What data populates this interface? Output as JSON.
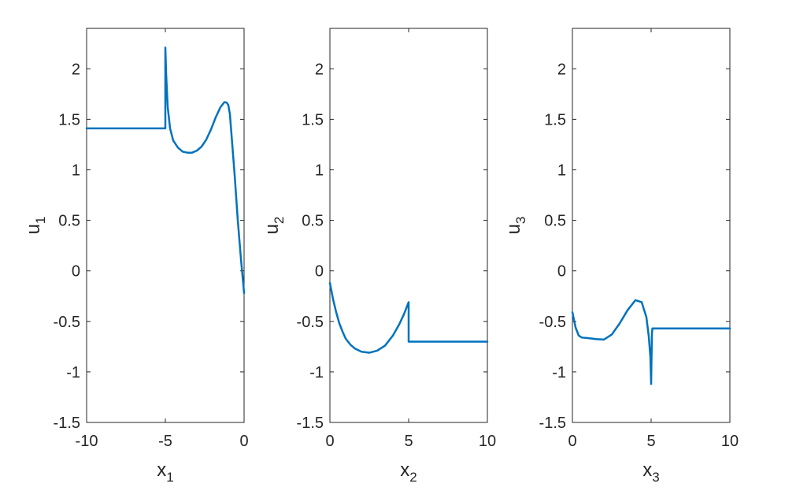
{
  "chart_data": [
    {
      "type": "line",
      "xlabel": "x",
      "xlabel_sub": "1",
      "ylabel": "u",
      "ylabel_sub": "1",
      "xlim": [
        -10,
        0
      ],
      "ylim": [
        -1.5,
        2.4
      ],
      "xticks": [
        -10,
        -5,
        0
      ],
      "xtick_labels": [
        "-10",
        "-5",
        "0"
      ],
      "yticks": [
        -1.5,
        -1,
        -0.5,
        0,
        0.5,
        1,
        1.5,
        2
      ],
      "ytick_labels": [
        "-1.5",
        "-1",
        "-0.5",
        "0",
        "0.5",
        "1",
        "1.5",
        "2"
      ],
      "grid": false,
      "color": "#0072BD",
      "series": [
        {
          "x": [
            -10,
            -5,
            -5,
            -4.95,
            -4.85,
            -4.7,
            -4.5,
            -4.2,
            -3.9,
            -3.6,
            -3.3,
            -3.0,
            -2.7,
            -2.4,
            -2.1,
            -1.8,
            -1.5,
            -1.25,
            -1.1,
            -1.0,
            -0.9,
            -0.8,
            -0.6,
            -0.4,
            -0.2,
            0
          ],
          "y": [
            1.41,
            1.41,
            2.21,
            1.95,
            1.62,
            1.41,
            1.29,
            1.22,
            1.18,
            1.17,
            1.17,
            1.19,
            1.23,
            1.3,
            1.4,
            1.52,
            1.62,
            1.67,
            1.665,
            1.64,
            1.55,
            1.35,
            0.95,
            0.5,
            0.12,
            -0.22
          ]
        }
      ]
    },
    {
      "type": "line",
      "xlabel": "x",
      "xlabel_sub": "2",
      "ylabel": "u",
      "ylabel_sub": "2",
      "xlim": [
        0,
        10
      ],
      "ylim": [
        -1.5,
        2.4
      ],
      "xticks": [
        0,
        5,
        10
      ],
      "xtick_labels": [
        "0",
        "5",
        "10"
      ],
      "yticks": [
        -1.5,
        -1,
        -0.5,
        0,
        0.5,
        1,
        1.5,
        2
      ],
      "ytick_labels": [
        "-1.5",
        "-1",
        "-0.5",
        "0",
        "0.5",
        "1",
        "1.5",
        "2"
      ],
      "grid": false,
      "color": "#0072BD",
      "series": [
        {
          "x": [
            0,
            0.2,
            0.4,
            0.6,
            0.8,
            1.0,
            1.3,
            1.6,
            2.0,
            2.5,
            3.0,
            3.5,
            4.0,
            4.4,
            4.7,
            4.9,
            5,
            5,
            10
          ],
          "y": [
            -0.12,
            -0.28,
            -0.41,
            -0.52,
            -0.6,
            -0.67,
            -0.73,
            -0.77,
            -0.8,
            -0.81,
            -0.79,
            -0.74,
            -0.64,
            -0.53,
            -0.43,
            -0.35,
            -0.31,
            -0.7,
            -0.7
          ]
        }
      ]
    },
    {
      "type": "line",
      "xlabel": "x",
      "xlabel_sub": "3",
      "ylabel": "u",
      "ylabel_sub": "3",
      "xlim": [
        0,
        10
      ],
      "ylim": [
        -1.5,
        2.4
      ],
      "xticks": [
        0,
        5,
        10
      ],
      "xtick_labels": [
        "0",
        "5",
        "10"
      ],
      "yticks": [
        -1.5,
        -1,
        -0.5,
        0,
        0.5,
        1,
        1.5,
        2
      ],
      "ytick_labels": [
        "-1.5",
        "-1",
        "-0.5",
        "0",
        "0.5",
        "1",
        "1.5",
        "2"
      ],
      "grid": false,
      "color": "#0072BD",
      "series": [
        {
          "x": [
            0,
            0.2,
            0.4,
            0.6,
            1.0,
            1.5,
            2.0,
            2.5,
            3.0,
            3.5,
            4.0,
            4.4,
            4.7,
            4.85,
            4.95,
            5.0,
            5.02,
            5.05,
            5.08,
            10
          ],
          "y": [
            -0.41,
            -0.56,
            -0.64,
            -0.66,
            -0.665,
            -0.675,
            -0.68,
            -0.63,
            -0.52,
            -0.39,
            -0.29,
            -0.31,
            -0.46,
            -0.65,
            -0.85,
            -1.12,
            -0.9,
            -0.62,
            -0.57,
            -0.57
          ]
        }
      ]
    }
  ]
}
